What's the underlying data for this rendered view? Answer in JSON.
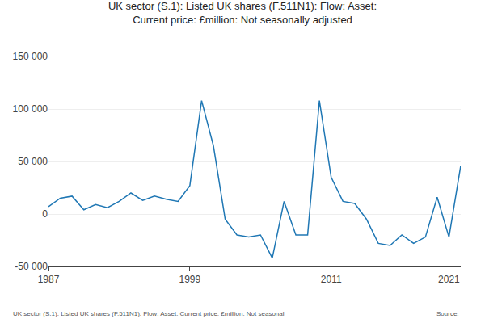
{
  "chart_data": {
    "type": "line",
    "title": "UK sector (S.1): Listed UK shares (F.511N1): Flow: Asset:\nCurrent price: £million: Not seasonally adjusted",
    "annotations": [
      "UK sector (S.1): Listed UK shares (F.511N1): Flow: Asset: Current price: £million: Not seasonal",
      "Source:"
    ],
    "x": [
      1987,
      1988,
      1989,
      1990,
      1991,
      1992,
      1993,
      1994,
      1995,
      1996,
      1997,
      1998,
      1999,
      2000,
      2001,
      2002,
      2003,
      2004,
      2005,
      2006,
      2007,
      2008,
      2009,
      2010,
      2011,
      2012,
      2013,
      2014,
      2015,
      2016,
      2017,
      2018,
      2019,
      2020,
      2021,
      2022
    ],
    "values": [
      7000,
      15000,
      17000,
      4000,
      9000,
      6000,
      12000,
      20000,
      13000,
      17000,
      14000,
      12000,
      27000,
      108000,
      65000,
      -5000,
      -20000,
      -22000,
      -20000,
      -42000,
      12000,
      -20000,
      -20000,
      108000,
      35000,
      12000,
      10000,
      -5000,
      -28000,
      -30000,
      -20000,
      -28000,
      -22000,
      16000,
      -22000,
      46000
    ],
    "color": "#1f77b4",
    "xlim": [
      1987,
      2022
    ],
    "xticks": [
      1987,
      1999,
      2011,
      2021
    ],
    "ylim": [
      -50000,
      150000
    ],
    "yticks": [
      {
        "value": -50000,
        "label": "-50 000"
      },
      0,
      {
        "value": 50000,
        "label": "50 000"
      },
      {
        "value": 100000,
        "label": "100 000"
      },
      {
        "value": 150000,
        "label": "150 000"
      }
    ],
    "grid": "y"
  }
}
